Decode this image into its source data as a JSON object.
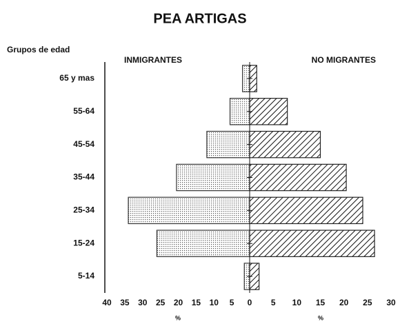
{
  "chart_data": {
    "type": "pyramid",
    "title": "PEA ARTIGAS",
    "y_label": "Grupos de edad",
    "categories": [
      "65 y mas",
      "55-64",
      "45-54",
      "35-44",
      "25-34",
      "15-24",
      "5-14"
    ],
    "series": [
      {
        "name": "INMIGRANTES",
        "side": "left",
        "color": "#bbbbbb",
        "values": [
          2,
          5.5,
          12,
          20.5,
          34,
          26,
          1.5
        ]
      },
      {
        "name": "NO MIGRANTES",
        "side": "right",
        "color": "#222222",
        "values": [
          1.5,
          8,
          15,
          20.5,
          24,
          26.5,
          2
        ]
      }
    ],
    "xlim_left": [
      40,
      0
    ],
    "xticks_left": [
      40,
      35,
      30,
      25,
      20,
      15,
      10,
      5,
      0
    ],
    "xlim_right": [
      0,
      30
    ],
    "xticks_right": [
      5,
      10,
      15,
      20,
      25,
      30
    ],
    "x_label_left": "%",
    "x_label_right": "%"
  }
}
